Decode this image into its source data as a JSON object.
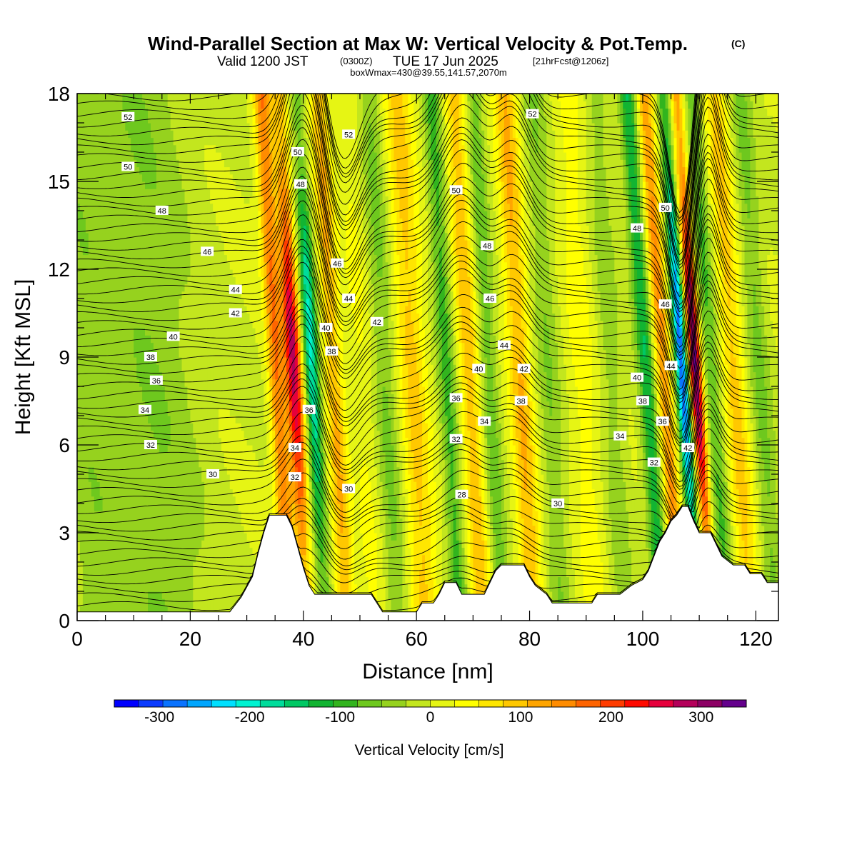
{
  "header": {
    "title": "Wind-Parallel Section at Max W: Vertical Velocity & Pot.Temp.",
    "copyright": "(C)",
    "valid_prefix": "Valid 1200 JST",
    "valid_utc": "(0300Z)",
    "valid_date": "TUE 17 Jun 2025",
    "forecast": "[21hrFcst@1206z]",
    "boxline": "boxWmax=430@39.55,141.57,2070m"
  },
  "colorbar": {
    "title": "Vertical Velocity [cm/s]",
    "ticks": [
      "-300",
      "-200",
      "-100",
      "0",
      "100",
      "200",
      "300"
    ],
    "colors": [
      "#0000ff",
      "#0b3bff",
      "#0a73ff",
      "#00a6ff",
      "#00e0ff",
      "#00f3d2",
      "#00dc9b",
      "#00c864",
      "#12b432",
      "#32b41e",
      "#6ec81e",
      "#96d21e",
      "#c3e61e",
      "#e6f514",
      "#ffff00",
      "#ffe600",
      "#ffc800",
      "#ffa500",
      "#ff8c00",
      "#ff6400",
      "#ff3c00",
      "#ff0a00",
      "#e6003c",
      "#b4005a",
      "#8c0064",
      "#64008c"
    ]
  },
  "chart_data": {
    "type": "heatmap",
    "xlabel": "Distance [nm]",
    "ylabel": "Height [Kft MSL]",
    "xlim": [
      0,
      124
    ],
    "ylim": [
      0,
      18
    ],
    "x_ticks": [
      "0",
      "20",
      "40",
      "60",
      "80",
      "100",
      "120"
    ],
    "y_ticks": [
      "0",
      "3",
      "6",
      "9",
      "12",
      "15",
      "18"
    ],
    "field": "Vertical Velocity [cm/s]",
    "contour_field": "Potential Temperature",
    "terrain_kft": [
      [
        0,
        0.3
      ],
      [
        27,
        0.3
      ],
      [
        29,
        0.8
      ],
      [
        31,
        1.5
      ],
      [
        32,
        2.3
      ],
      [
        33,
        3.0
      ],
      [
        34,
        3.6
      ],
      [
        37,
        3.6
      ],
      [
        38,
        3.2
      ],
      [
        39,
        2.5
      ],
      [
        40,
        1.8
      ],
      [
        41,
        1.2
      ],
      [
        42,
        0.9
      ],
      [
        52,
        0.9
      ],
      [
        53,
        0.6
      ],
      [
        54,
        0.3
      ],
      [
        60,
        0.3
      ],
      [
        61,
        0.6
      ],
      [
        63,
        0.6
      ],
      [
        64,
        0.9
      ],
      [
        65,
        1.3
      ],
      [
        67,
        1.3
      ],
      [
        68,
        0.9
      ],
      [
        72,
        0.9
      ],
      [
        73,
        1.3
      ],
      [
        74,
        1.7
      ],
      [
        75,
        1.9
      ],
      [
        79,
        1.9
      ],
      [
        80,
        1.5
      ],
      [
        81,
        1.2
      ],
      [
        83,
        0.9
      ],
      [
        84,
        0.6
      ],
      [
        91,
        0.6
      ],
      [
        92,
        0.9
      ],
      [
        96,
        0.9
      ],
      [
        98,
        1.2
      ],
      [
        100,
        1.4
      ],
      [
        101,
        1.7
      ],
      [
        102,
        2.2
      ],
      [
        103,
        2.7
      ],
      [
        104,
        3.0
      ],
      [
        105,
        3.4
      ],
      [
        106,
        3.6
      ],
      [
        107,
        3.9
      ],
      [
        108,
        3.9
      ],
      [
        109,
        3.4
      ],
      [
        110,
        3.0
      ],
      [
        112,
        3.0
      ],
      [
        113,
        2.6
      ],
      [
        114,
        2.2
      ],
      [
        116,
        1.9
      ],
      [
        118,
        1.9
      ],
      [
        119,
        1.6
      ],
      [
        121,
        1.6
      ],
      [
        122,
        1.3
      ],
      [
        124,
        1.3
      ]
    ],
    "bands": [
      {
        "x": 2,
        "w": 5,
        "v": -40
      },
      {
        "x": 14,
        "w": 8,
        "v": -50
      },
      {
        "x": 36,
        "w": 1.5,
        "v": 160
      },
      {
        "x": 39,
        "w": 1.4,
        "v": 280
      },
      {
        "x": 42.2,
        "w": 1.3,
        "v": -200
      },
      {
        "x": 46,
        "w": 1.6,
        "v": 110
      },
      {
        "x": 51,
        "w": 2.5,
        "v": 30
      },
      {
        "x": 55,
        "w": 2.0,
        "v": -60
      },
      {
        "x": 60,
        "w": 2.5,
        "v": 90
      },
      {
        "x": 66,
        "w": 1.5,
        "v": -90
      },
      {
        "x": 70,
        "w": 1.8,
        "v": 100
      },
      {
        "x": 73.5,
        "w": 1.5,
        "v": -70
      },
      {
        "x": 79,
        "w": 2.0,
        "v": 110
      },
      {
        "x": 84,
        "w": 2.0,
        "v": -50
      },
      {
        "x": 90,
        "w": 2.5,
        "v": 40
      },
      {
        "x": 95,
        "w": 2.0,
        "v": -40
      },
      {
        "x": 101.5,
        "w": 1.5,
        "v": -130
      },
      {
        "x": 104.5,
        "w": 1.5,
        "v": 140
      },
      {
        "x": 107.8,
        "w": 1.1,
        "v": -300
      },
      {
        "x": 110.2,
        "w": 1.1,
        "v": 330
      },
      {
        "x": 113,
        "w": 1.5,
        "v": -80
      },
      {
        "x": 117,
        "w": 2.0,
        "v": 90
      },
      {
        "x": 121.5,
        "w": 1.8,
        "v": -60
      }
    ],
    "theta_labels": [
      {
        "x": 9,
        "y": 17.2,
        "text": "52"
      },
      {
        "x": 9,
        "y": 15.5,
        "text": "50"
      },
      {
        "x": 15,
        "y": 14.0,
        "text": "48"
      },
      {
        "x": 23,
        "y": 12.6,
        "text": "46"
      },
      {
        "x": 28,
        "y": 11.3,
        "text": "44"
      },
      {
        "x": 28,
        "y": 10.5,
        "text": "42"
      },
      {
        "x": 17,
        "y": 9.7,
        "text": "40"
      },
      {
        "x": 13,
        "y": 9.0,
        "text": "38"
      },
      {
        "x": 14,
        "y": 8.2,
        "text": "36"
      },
      {
        "x": 12,
        "y": 7.2,
        "text": "34"
      },
      {
        "x": 13,
        "y": 6.0,
        "text": "32"
      },
      {
        "x": 24,
        "y": 5.0,
        "text": "30"
      },
      {
        "x": 39,
        "y": 16.0,
        "text": "50"
      },
      {
        "x": 39.5,
        "y": 14.9,
        "text": "48"
      },
      {
        "x": 48,
        "y": 16.6,
        "text": "52"
      },
      {
        "x": 46,
        "y": 12.2,
        "text": "46"
      },
      {
        "x": 48,
        "y": 11.0,
        "text": "44"
      },
      {
        "x": 44,
        "y": 10.0,
        "text": "40"
      },
      {
        "x": 53,
        "y": 10.2,
        "text": "42"
      },
      {
        "x": 45,
        "y": 9.2,
        "text": "38"
      },
      {
        "x": 41,
        "y": 7.2,
        "text": "36"
      },
      {
        "x": 38.5,
        "y": 5.9,
        "text": "34"
      },
      {
        "x": 38.5,
        "y": 4.9,
        "text": "32"
      },
      {
        "x": 48,
        "y": 4.5,
        "text": "30"
      },
      {
        "x": 80.5,
        "y": 17.3,
        "text": "52"
      },
      {
        "x": 67,
        "y": 14.7,
        "text": "50"
      },
      {
        "x": 72.5,
        "y": 12.8,
        "text": "48"
      },
      {
        "x": 73,
        "y": 11.0,
        "text": "46"
      },
      {
        "x": 75.5,
        "y": 9.4,
        "text": "44"
      },
      {
        "x": 71,
        "y": 8.6,
        "text": "40"
      },
      {
        "x": 79,
        "y": 8.6,
        "text": "42"
      },
      {
        "x": 67,
        "y": 7.6,
        "text": "36"
      },
      {
        "x": 78.5,
        "y": 7.5,
        "text": "38"
      },
      {
        "x": 72,
        "y": 6.8,
        "text": "34"
      },
      {
        "x": 67,
        "y": 6.2,
        "text": "32"
      },
      {
        "x": 68,
        "y": 4.3,
        "text": "28"
      },
      {
        "x": 85,
        "y": 4.0,
        "text": "30"
      },
      {
        "x": 104,
        "y": 14.1,
        "text": "50"
      },
      {
        "x": 99,
        "y": 13.4,
        "text": "48"
      },
      {
        "x": 104,
        "y": 10.8,
        "text": "46"
      },
      {
        "x": 105,
        "y": 8.7,
        "text": "44"
      },
      {
        "x": 99,
        "y": 8.3,
        "text": "40"
      },
      {
        "x": 100,
        "y": 7.5,
        "text": "38"
      },
      {
        "x": 103.5,
        "y": 6.8,
        "text": "36"
      },
      {
        "x": 96,
        "y": 6.3,
        "text": "34"
      },
      {
        "x": 102,
        "y": 5.4,
        "text": "32"
      },
      {
        "x": 108,
        "y": 5.9,
        "text": "42"
      }
    ]
  }
}
